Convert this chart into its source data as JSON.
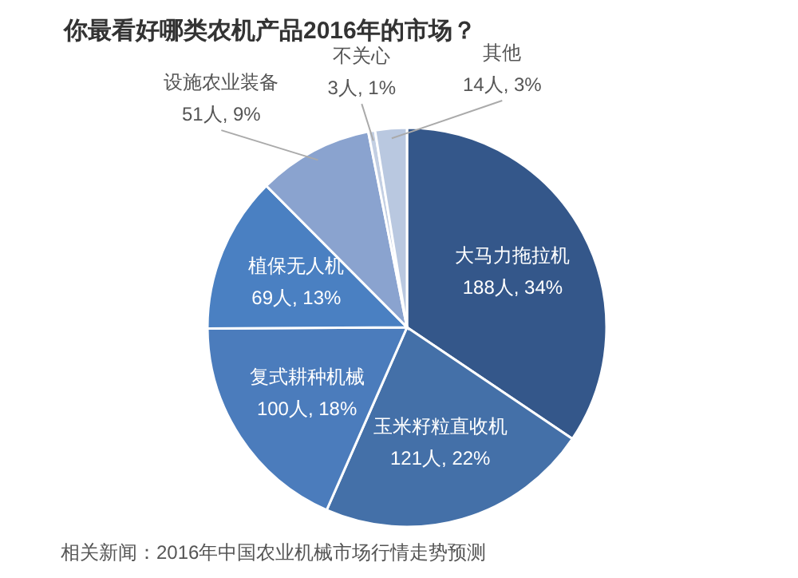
{
  "chart_data": {
    "type": "pie",
    "title": "你最看好哪类农机产品2016年的市场？",
    "categories": [
      "大马力拖拉机",
      "玉米籽粒直收机",
      "复式耕种机械",
      "植保无人机",
      "设施农业装备",
      "不关心",
      "其他"
    ],
    "values": [
      188,
      121,
      100,
      69,
      51,
      3,
      14
    ],
    "value_labels": [
      "188人, 34%",
      "121人, 22%",
      "100人, 18%",
      "69人, 13%",
      "51人, 9%",
      "3人, 1%",
      "14人, 3%"
    ],
    "colors": [
      "#34578a",
      "#4470a8",
      "#4b7cbc",
      "#4a80c2",
      "#8aa3cf",
      "#c3cfe3",
      "#b9c8e0"
    ],
    "annotations": [
      "相关新闻：2016年中国农业机械市场行情走势预测"
    ]
  }
}
